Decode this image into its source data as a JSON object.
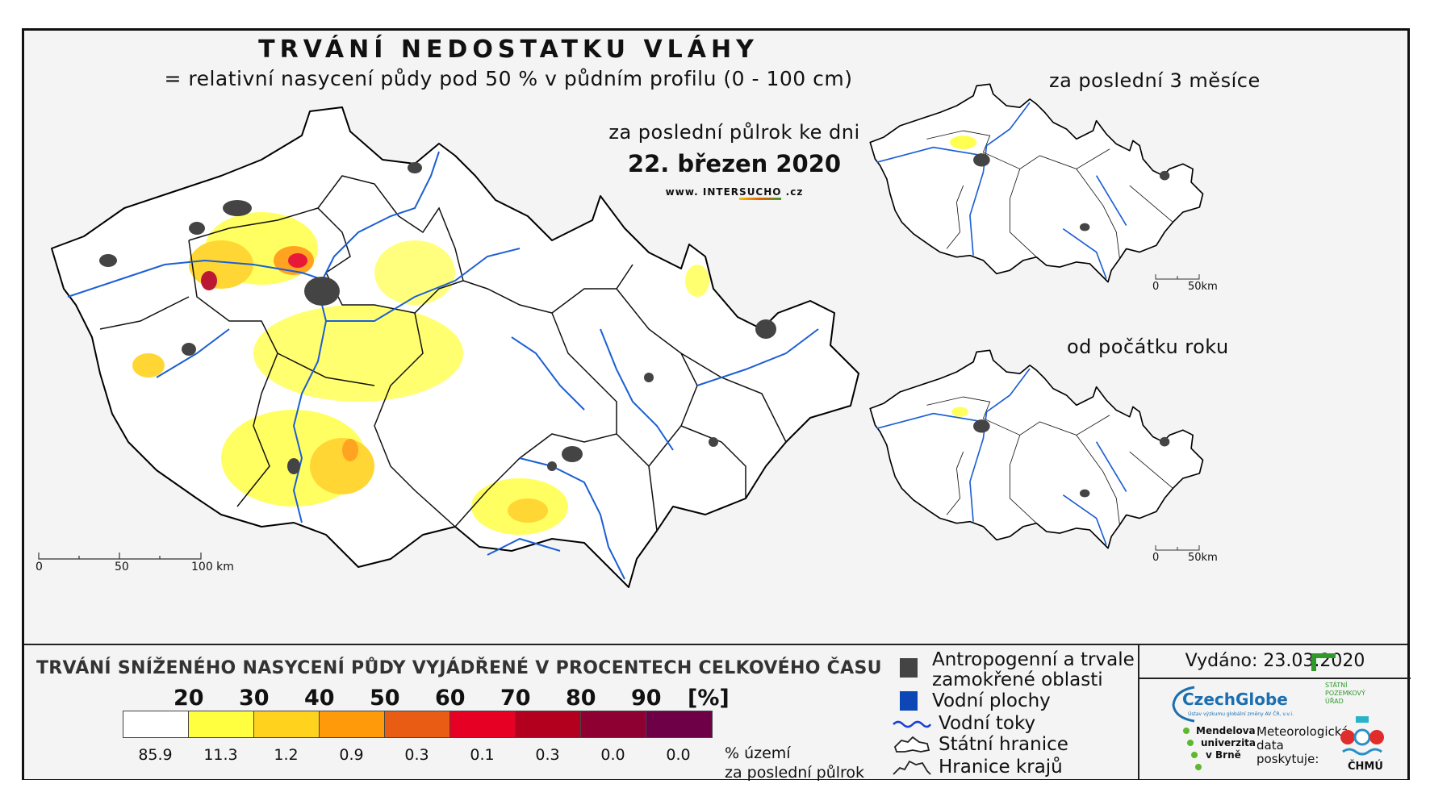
{
  "title": "TRVÁNÍ NEDOSTATKU VLÁHY",
  "subtitle": "= relativní nasycení půdy pod 50 % v půdním profilu (0 - 100 cm)",
  "period_label": "za poslední půlrok ke dni",
  "date": "22. březen 2020",
  "website": {
    "prefix": "www.",
    "intro": "INTER",
    "highlight": "SUCHO",
    "suffix": ".cz"
  },
  "inset_top": {
    "label": "za poslední 3 měsíce",
    "scale": [
      "0",
      "50km"
    ]
  },
  "inset_bottom": {
    "label": "od počátku roku",
    "scale": [
      "0",
      "50km"
    ]
  },
  "main_scale": [
    "0",
    "50",
    "100 km"
  ],
  "legend": {
    "title": "TRVÁNÍ SNÍŽENÉHO NASYCENÍ PŮDY VYJÁDŘENÉ V PROCENTECH CELKOVÉHO ČASU",
    "thresholds": [
      "20",
      "30",
      "40",
      "50",
      "60",
      "70",
      "80",
      "90"
    ],
    "unit": "[%]",
    "colors": [
      "#ffffff",
      "#ffff40",
      "#ffd21e",
      "#ff9a0a",
      "#e85c14",
      "#e60023",
      "#b3001e",
      "#8e0031",
      "#6e0048"
    ],
    "area_percent": [
      "85.9",
      "11.3",
      "1.2",
      "0.9",
      "0.3",
      "0.1",
      "0.3",
      "0.0",
      "0.0"
    ],
    "area_note_line1": "% území",
    "area_note_line2": "za poslední půlrok"
  },
  "symbols": {
    "anthropogenic_line1": "Antropogenní a trvale",
    "anthropogenic_line2": "zamokřené oblasti",
    "water_bodies": "Vodní plochy",
    "rivers": "Vodní toky",
    "state_border": "Státní hranice",
    "region_border": "Hranice krajů"
  },
  "issued": "Vydáno: 23.03.2020",
  "logos": {
    "czechglobe": "CzechGlobe",
    "czechglobe_sub": "Ústav výzkumu globální změny AV ČR, v.v.i.",
    "spu_line1": "STÁTNÍ",
    "spu_line2": "POZEMKOVÝ",
    "spu_line3": "ÚŘAD",
    "mendel_line1": "Mendelova",
    "mendel_line2": "univerzita",
    "mendel_line3": "v Brně",
    "meteo_line1": "Meteorologická",
    "meteo_line2": "data",
    "meteo_line3": "poskytuje:",
    "chmu": "ČHMÚ"
  }
}
